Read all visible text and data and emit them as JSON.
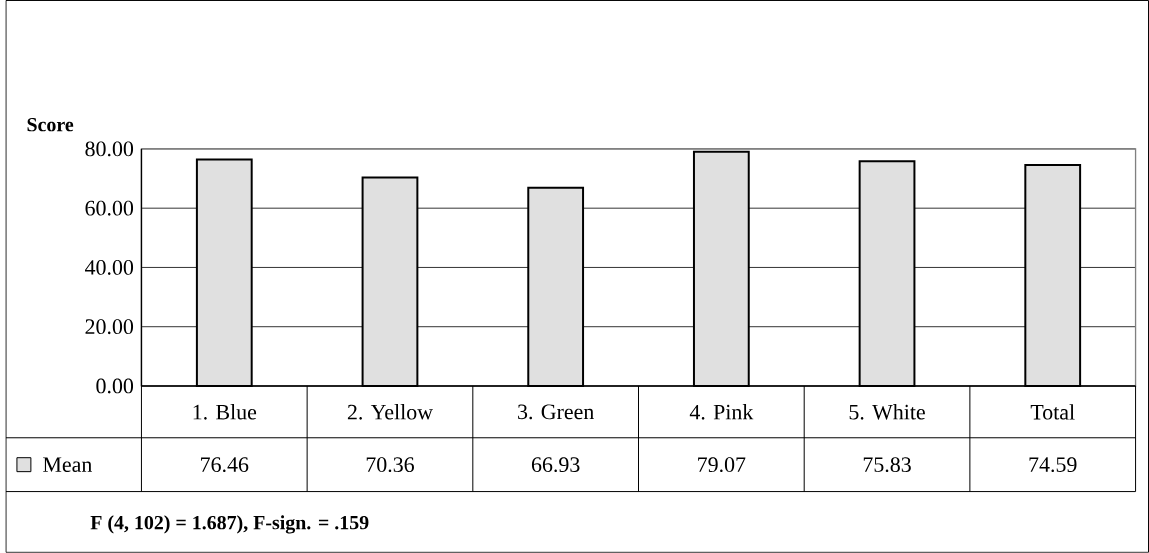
{
  "chart_data": {
    "type": "bar",
    "ylabel": "Score",
    "categories": [
      "1. Blue",
      "2. Yellow",
      "3. Green",
      "4. Pink",
      "5. White",
      "Total"
    ],
    "series": [
      {
        "name": "Mean",
        "color": "#e0e0e0",
        "values": [
          76.46,
          70.36,
          66.93,
          79.07,
          75.83,
          74.59
        ]
      }
    ],
    "ylim": [
      0,
      80
    ],
    "yticks": [
      {
        "value": 0,
        "label": "0.00"
      },
      {
        "value": 20,
        "label": "20.00"
      },
      {
        "value": 40,
        "label": "40.00"
      },
      {
        "value": 60,
        "label": "60.00"
      },
      {
        "value": 80,
        "label": "80.00"
      }
    ],
    "grid": "y",
    "legend": "bottom left",
    "data_labels": true,
    "annotations": [
      "F (4, 102) = 1.687), F-sign. = .159"
    ]
  }
}
